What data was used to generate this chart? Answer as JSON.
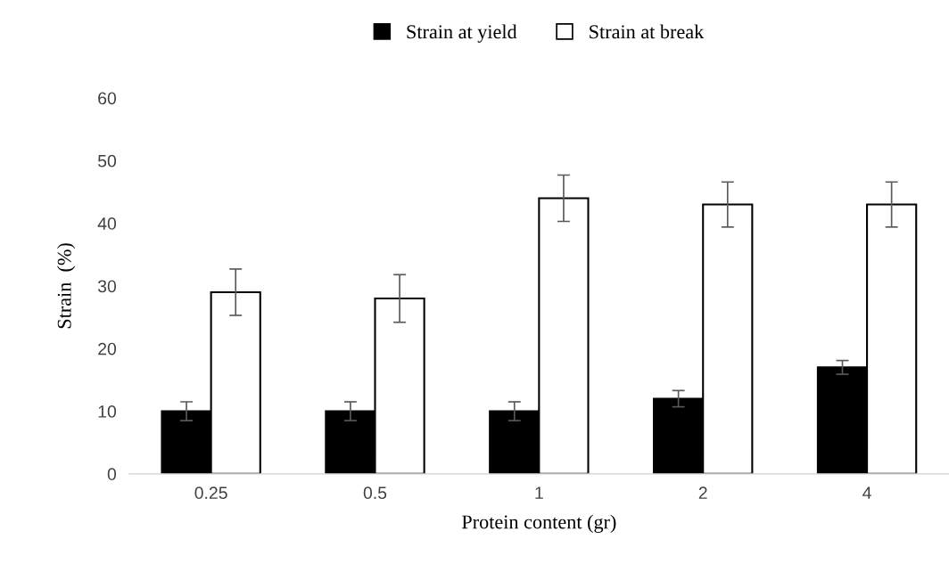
{
  "chart_data": {
    "type": "bar",
    "xlabel": "Protein content (gr)",
    "ylabel": "Strain  (%)",
    "categories": [
      "0.25",
      "0.5",
      "1",
      "2",
      "4"
    ],
    "series": [
      {
        "name": "Strain at yield",
        "color": "#000000",
        "values": [
          10,
          10,
          10,
          12,
          17
        ],
        "errors": [
          1.5,
          1.5,
          1.5,
          1.3,
          1.1
        ]
      },
      {
        "name": "Strain at break",
        "color": "#ffffff",
        "values": [
          29,
          28,
          44,
          43,
          43
        ],
        "errors": [
          3.7,
          3.8,
          3.7,
          3.6,
          3.6
        ]
      }
    ],
    "ylim": [
      0,
      60
    ],
    "yticks": [
      0,
      10,
      20,
      30,
      40,
      50,
      60
    ],
    "legend": "top",
    "grid": false
  }
}
